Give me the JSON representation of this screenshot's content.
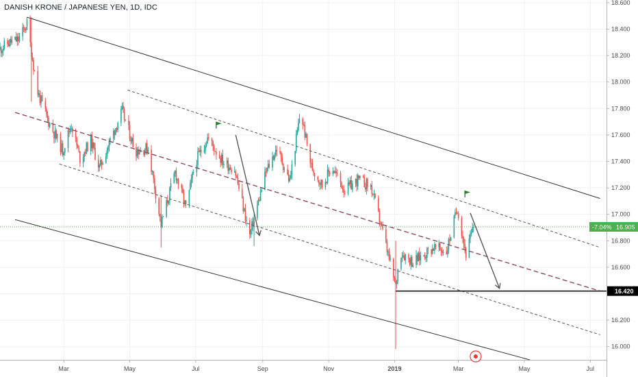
{
  "header": {
    "title": "DANISH KRONE / JAPANESE YEN, 1D, IDC"
  },
  "chart_data": {
    "type": "candlestick",
    "title": "DANISH KRONE / JAPANESE YEN, 1D, IDC",
    "symbol": "DKKJPY",
    "interval": "1D",
    "source": "IDC",
    "y_range": [
      15.9,
      18.62
    ],
    "x_range": [
      "2018-01-01",
      "2019-07-16"
    ],
    "y_ticks": [
      "18.600",
      "18.400",
      "18.200",
      "18.000",
      "17.800",
      "17.600",
      "17.400",
      "17.200",
      "17.000",
      "16.800",
      "16.600",
      "16.400",
      "16.200",
      "16.000"
    ],
    "x_ticks": [
      {
        "label": "Mar",
        "date": "2018-03-01",
        "bold": false
      },
      {
        "label": "May",
        "date": "2018-05-01",
        "bold": false
      },
      {
        "label": "Jul",
        "date": "2018-07-01",
        "bold": false
      },
      {
        "label": "Sep",
        "date": "2018-09-01",
        "bold": false
      },
      {
        "label": "Nov",
        "date": "2018-11-01",
        "bold": false
      },
      {
        "label": "2019",
        "date": "2019-01-01",
        "bold": true
      },
      {
        "label": "Mar",
        "date": "2019-03-01",
        "bold": false
      },
      {
        "label": "May",
        "date": "2019-05-01",
        "bold": false
      },
      {
        "label": "Jul",
        "date": "2019-07-01",
        "bold": false
      }
    ],
    "last_price": {
      "value": 16.905,
      "label": "16.905",
      "change_label": "-7.04%"
    },
    "level_label": {
      "value": 16.42,
      "label": "16.420"
    },
    "close_path": [
      [
        "2018-01-01",
        18.25
      ],
      [
        "2018-01-10",
        18.3
      ],
      [
        "2018-01-18",
        18.32
      ],
      [
        "2018-01-26",
        18.44
      ],
      [
        "2018-02-05",
        17.92
      ],
      [
        "2018-02-15",
        17.7
      ],
      [
        "2018-02-28",
        17.48
      ],
      [
        "2018-03-08",
        17.68
      ],
      [
        "2018-03-16",
        17.42
      ],
      [
        "2018-03-26",
        17.56
      ],
      [
        "2018-04-03",
        17.35
      ],
      [
        "2018-04-14",
        17.58
      ],
      [
        "2018-04-24",
        17.78
      ],
      [
        "2018-05-06",
        17.48
      ],
      [
        "2018-05-18",
        17.5
      ],
      [
        "2018-05-30",
        16.92
      ],
      [
        "2018-06-12",
        17.32
      ],
      [
        "2018-06-22",
        17.05
      ],
      [
        "2018-07-01",
        17.4
      ],
      [
        "2018-07-12",
        17.58
      ],
      [
        "2018-07-26",
        17.4
      ],
      [
        "2018-08-06",
        17.34
      ],
      [
        "2018-08-20",
        16.84
      ],
      [
        "2018-09-04",
        17.32
      ],
      [
        "2018-09-14",
        17.5
      ],
      [
        "2018-09-26",
        17.25
      ],
      [
        "2018-10-06",
        17.78
      ],
      [
        "2018-10-16",
        17.36
      ],
      [
        "2018-10-26",
        17.22
      ],
      [
        "2018-11-04",
        17.36
      ],
      [
        "2018-11-16",
        17.18
      ],
      [
        "2018-11-28",
        17.26
      ],
      [
        "2018-12-10",
        17.21
      ],
      [
        "2018-12-20",
        16.9
      ],
      [
        "2019-01-02",
        16.45
      ],
      [
        "2019-01-06",
        16.72
      ],
      [
        "2019-01-18",
        16.64
      ],
      [
        "2019-02-06",
        16.75
      ],
      [
        "2019-02-18",
        16.72
      ],
      [
        "2019-02-28",
        17.05
      ],
      [
        "2019-03-08",
        16.7
      ],
      [
        "2019-03-15",
        16.905
      ]
    ],
    "extremes": [
      {
        "date": "2018-01-30",
        "high": 18.49,
        "low": 17.85
      },
      {
        "date": "2018-05-30",
        "high": 17.15,
        "low": 16.75
      },
      {
        "date": "2018-08-24",
        "high": 17.0,
        "low": 16.76
      },
      {
        "date": "2019-01-02",
        "high": 16.8,
        "low": 15.98
      }
    ],
    "drawings": {
      "channel_outer_upper": [
        [
          "2018-01-26",
          18.49
        ],
        [
          "2019-07-10",
          17.12
        ]
      ],
      "channel_outer_lower": [
        [
          "2018-01-15",
          16.96
        ],
        [
          "2019-05-06",
          15.9
        ]
      ],
      "channel_inner_upper": [
        [
          "2018-04-29",
          17.94
        ],
        [
          "2019-07-10",
          16.75
        ]
      ],
      "channel_mid": [
        [
          "2018-01-15",
          17.77
        ],
        [
          "2019-07-10",
          16.42
        ]
      ],
      "channel_inner_lower": [
        [
          "2018-02-25",
          17.38
        ],
        [
          "2019-07-10",
          16.09
        ]
      ],
      "support_line": {
        "from": "2019-01-02",
        "to": "2019-07-16",
        "value": 16.42
      },
      "arrows": [
        [
          [
            "2018-08-07",
            17.6
          ],
          [
            "2018-08-29",
            16.84
          ]
        ],
        [
          [
            "2019-03-12",
            17.01
          ],
          [
            "2019-04-08",
            16.44
          ]
        ]
      ],
      "flags": [
        [
          "2018-07-20",
          17.7
        ],
        [
          "2019-03-07",
          17.18
        ]
      ]
    }
  }
}
